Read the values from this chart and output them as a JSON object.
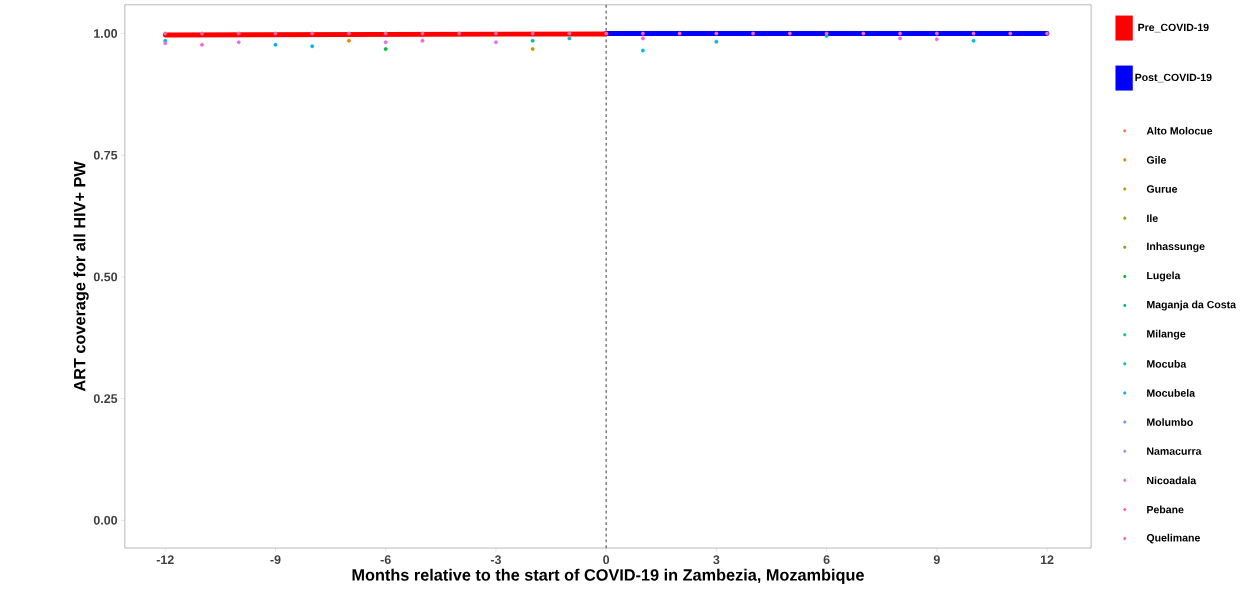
{
  "chart_data": {
    "type": "scatter",
    "xlabel": "Months relative to the start of COVID-19 in Zambezia, Mozambique",
    "ylabel": "ART coverage for all HIV+ PW",
    "x": [
      -12,
      -11,
      -10,
      -9,
      -8,
      -7,
      -6,
      -5,
      -4,
      -3,
      -2,
      -1,
      0,
      1,
      2,
      3,
      4,
      5,
      6,
      7,
      8,
      9,
      10,
      11,
      12
    ],
    "xlim": [
      -13.1,
      13.2
    ],
    "xticks": [
      -12,
      -9,
      -6,
      -3,
      0,
      3,
      6,
      9,
      12
    ],
    "ylim": [
      -0.057,
      1.059
    ],
    "yticks": [
      {
        "value": 0,
        "label": "0.00"
      },
      {
        "value": 0.25,
        "label": "0.25"
      },
      {
        "value": 0.5,
        "label": "0.50"
      },
      {
        "value": 0.75,
        "label": "0.75"
      },
      {
        "value": 1,
        "label": "1.00"
      }
    ],
    "marker": "circle",
    "legend": "right",
    "ref_lines": [
      {
        "axis": "x",
        "value": 0,
        "line_style": "dashed",
        "color": "#000000"
      }
    ],
    "series": [
      {
        "name": "Post_COVID-19",
        "type": "line",
        "marker": "none",
        "color": "#0000ff",
        "x": [
          0,
          12
        ],
        "values": [
          1.0,
          1.0
        ]
      },
      {
        "name": "Pre_COVID-19",
        "type": "line",
        "marker": "none",
        "color": "#ff0000",
        "x": [
          -12,
          0
        ],
        "values": [
          0.997,
          0.999
        ]
      },
      {
        "name": "Alto Molocue",
        "color": "#F8766D",
        "values": [
          null,
          null,
          null,
          null,
          null,
          null,
          null,
          null,
          null,
          null,
          null,
          null,
          null,
          null,
          null,
          null,
          null,
          null,
          null,
          null,
          null,
          null,
          null,
          null,
          null
        ]
      },
      {
        "name": "Gile",
        "color": "#E58700",
        "values": [
          null,
          null,
          null,
          null,
          null,
          0.985,
          null,
          null,
          null,
          null,
          null,
          null,
          null,
          null,
          null,
          null,
          null,
          null,
          null,
          null,
          null,
          null,
          null,
          null,
          null
        ]
      },
      {
        "name": "Gurue",
        "color": "#C99800",
        "values": [
          null,
          null,
          null,
          null,
          null,
          null,
          null,
          null,
          null,
          null,
          0.968,
          null,
          null,
          null,
          null,
          null,
          null,
          null,
          null,
          null,
          null,
          null,
          null,
          null,
          null
        ]
      },
      {
        "name": "Ile",
        "color": "#A3A500",
        "values": [
          null,
          null,
          null,
          null,
          null,
          null,
          null,
          null,
          null,
          null,
          null,
          null,
          null,
          null,
          null,
          null,
          null,
          null,
          null,
          null,
          null,
          null,
          null,
          null,
          null
        ]
      },
      {
        "name": "Inhassunge",
        "color": "#6BB100",
        "values": [
          null,
          null,
          null,
          null,
          null,
          null,
          null,
          null,
          null,
          null,
          null,
          null,
          null,
          null,
          null,
          null,
          null,
          null,
          null,
          null,
          null,
          null,
          null,
          null,
          null
        ]
      },
      {
        "name": "Lugela",
        "color": "#00BA38",
        "values": [
          null,
          null,
          null,
          null,
          null,
          null,
          0.968,
          null,
          null,
          null,
          null,
          null,
          null,
          null,
          null,
          null,
          null,
          null,
          null,
          null,
          null,
          null,
          null,
          null,
          null
        ]
      },
      {
        "name": "Maganja da Costa",
        "color": "#00BF7D",
        "values": [
          null,
          null,
          null,
          null,
          null,
          null,
          null,
          null,
          null,
          null,
          null,
          null,
          null,
          null,
          null,
          null,
          null,
          null,
          null,
          null,
          null,
          null,
          null,
          null,
          null
        ]
      },
      {
        "name": "Milange",
        "color": "#00C0AF",
        "values": [
          null,
          null,
          null,
          null,
          null,
          null,
          null,
          null,
          null,
          null,
          0.985,
          0.99,
          null,
          null,
          null,
          null,
          null,
          null,
          0.995,
          null,
          null,
          null,
          null,
          null,
          null
        ]
      },
      {
        "name": "Mocuba",
        "color": "#00BCD8",
        "values": [
          0.985,
          null,
          null,
          null,
          null,
          null,
          null,
          null,
          null,
          null,
          null,
          null,
          null,
          0.965,
          null,
          0.983,
          null,
          null,
          null,
          null,
          null,
          null,
          0.985,
          null,
          null
        ]
      },
      {
        "name": "Mocubela",
        "color": "#00B0F6",
        "values": [
          null,
          null,
          null,
          0.977,
          0.974,
          null,
          null,
          null,
          null,
          null,
          null,
          null,
          null,
          null,
          null,
          null,
          null,
          null,
          null,
          null,
          null,
          null,
          null,
          null,
          null
        ]
      },
      {
        "name": "Molumbo",
        "color": "#619CFF",
        "values": [
          null,
          null,
          null,
          null,
          null,
          null,
          null,
          null,
          null,
          null,
          null,
          null,
          null,
          null,
          null,
          null,
          null,
          null,
          null,
          null,
          null,
          null,
          null,
          null,
          null
        ]
      },
      {
        "name": "Namacurra",
        "color": "#B983FF",
        "values": [
          null,
          null,
          null,
          null,
          null,
          null,
          null,
          null,
          null,
          null,
          null,
          null,
          null,
          null,
          null,
          null,
          null,
          null,
          null,
          null,
          null,
          null,
          null,
          null,
          null
        ]
      },
      {
        "name": "Nicoadala",
        "color": "#E76BF3",
        "values": [
          0.98,
          null,
          0.982,
          null,
          null,
          null,
          0.982,
          null,
          null,
          0.982,
          null,
          null,
          null,
          null,
          null,
          null,
          null,
          null,
          null,
          null,
          0.99,
          0.988,
          null,
          null,
          null
        ]
      },
      {
        "name": "Pebane",
        "color": "#FD61D1",
        "values": [
          null,
          0.977,
          null,
          null,
          null,
          null,
          null,
          0.985,
          null,
          null,
          null,
          null,
          null,
          0.99,
          null,
          null,
          null,
          null,
          null,
          null,
          null,
          null,
          null,
          null,
          null
        ]
      },
      {
        "name": "Quelimane",
        "color": "#FF67A4",
        "values": [
          1,
          1,
          1,
          1,
          1,
          1,
          1,
          1,
          1,
          1,
          1,
          1,
          1,
          1,
          1,
          1,
          1,
          1,
          1,
          1,
          1,
          1,
          1,
          1,
          1
        ]
      }
    ]
  }
}
